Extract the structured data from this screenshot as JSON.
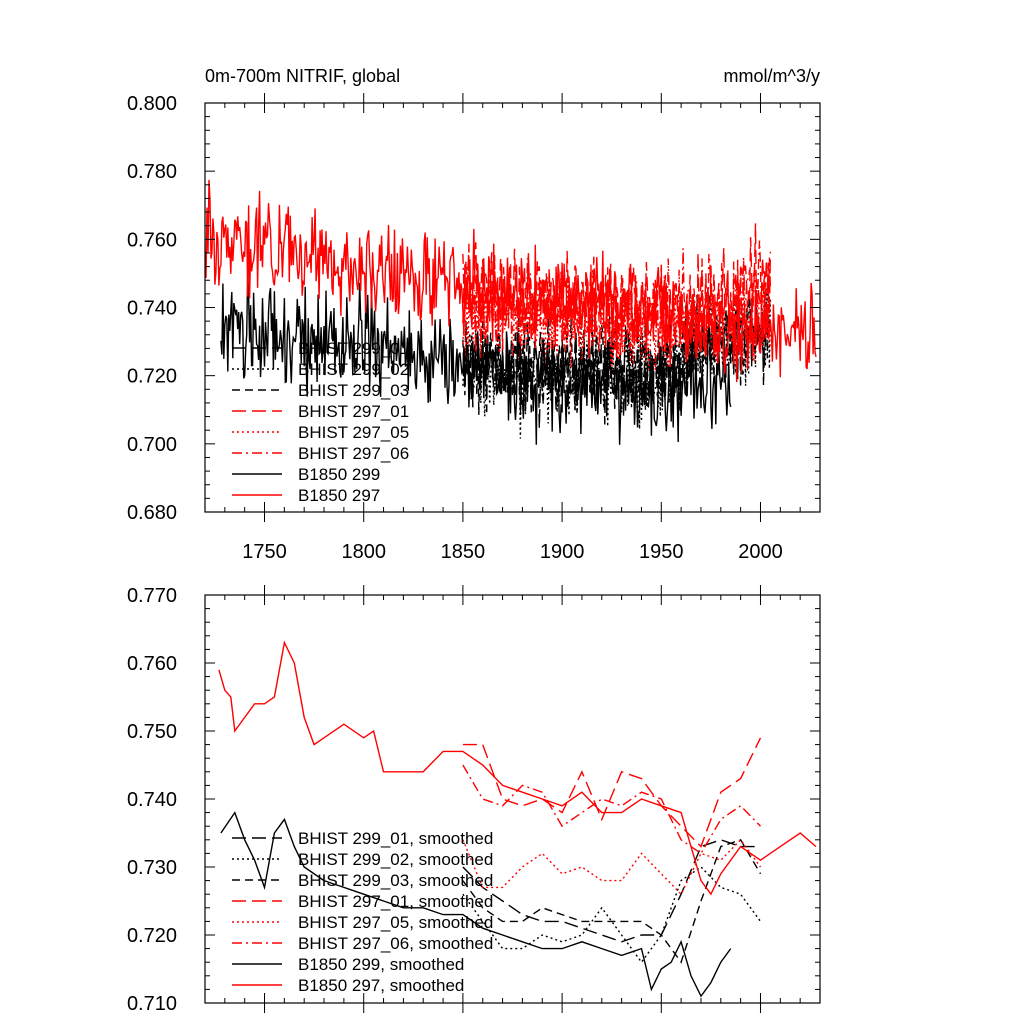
{
  "header": {
    "title": "0m-700m NITRIF, global",
    "units": "mmol/m^3/y"
  },
  "colors": {
    "hist_299": "#000000",
    "hist_297": "#ff0000",
    "background": "#ffffff"
  },
  "chart_data": [
    {
      "type": "line",
      "title": "0m-700m NITRIF, global",
      "units": "mmol/m^3/y",
      "xlim": [
        1720,
        2030
      ],
      "ylim": [
        0.68,
        0.8
      ],
      "xticks": [
        1750,
        1800,
        1850,
        1900,
        1950,
        2000
      ],
      "yticks": [
        0.68,
        0.7,
        0.72,
        0.74,
        0.76,
        0.78,
        0.8
      ],
      "ytick_labels": [
        "0.680",
        "0.700",
        "0.720",
        "0.740",
        "0.760",
        "0.780",
        "0.800"
      ],
      "xtick_labels": [
        "1750",
        "1800",
        "1850",
        "1900",
        "1950",
        "2000"
      ],
      "legend_position": "lower-left",
      "series": [
        {
          "name": "BHIST 299_01",
          "color": "#000000",
          "dash": "longdash",
          "x_range": [
            1850,
            2005
          ],
          "base": [
            [
              1850,
              0.724
            ],
            [
              1900,
              0.722
            ],
            [
              1950,
              0.721
            ],
            [
              1970,
              0.728
            ],
            [
              2005,
              0.733
            ]
          ],
          "amp": 0.012,
          "seed": 11
        },
        {
          "name": "BHIST 299_02",
          "color": "#000000",
          "dash": "dot",
          "x_range": [
            1850,
            2005
          ],
          "base": [
            [
              1850,
              0.722
            ],
            [
              1900,
              0.72
            ],
            [
              1950,
              0.719
            ],
            [
              1970,
              0.726
            ],
            [
              2005,
              0.731
            ]
          ],
          "amp": 0.013,
          "seed": 12
        },
        {
          "name": "BHIST 299_03",
          "color": "#000000",
          "dash": "dash",
          "x_range": [
            1850,
            2005
          ],
          "base": [
            [
              1850,
              0.724
            ],
            [
              1900,
              0.723
            ],
            [
              1950,
              0.722
            ],
            [
              1970,
              0.729
            ],
            [
              2005,
              0.734
            ]
          ],
          "amp": 0.012,
          "seed": 13
        },
        {
          "name": "BHIST 297_01",
          "color": "#ff0000",
          "dash": "longdash",
          "x_range": [
            1850,
            2005
          ],
          "base": [
            [
              1850,
              0.745
            ],
            [
              1900,
              0.742
            ],
            [
              1950,
              0.74
            ],
            [
              1980,
              0.742
            ],
            [
              2005,
              0.747
            ]
          ],
          "amp": 0.012,
          "seed": 21
        },
        {
          "name": "BHIST 297_05",
          "color": "#ff0000",
          "dash": "dot",
          "x_range": [
            1850,
            2005
          ],
          "base": [
            [
              1850,
              0.74
            ],
            [
              1900,
              0.733
            ],
            [
              1950,
              0.732
            ],
            [
              1980,
              0.735
            ],
            [
              2005,
              0.736
            ]
          ],
          "amp": 0.011,
          "seed": 22
        },
        {
          "name": "BHIST 297_06",
          "color": "#ff0000",
          "dash": "dashdot",
          "x_range": [
            1850,
            2005
          ],
          "base": [
            [
              1850,
              0.743
            ],
            [
              1900,
              0.74
            ],
            [
              1950,
              0.74
            ],
            [
              1980,
              0.742
            ],
            [
              2005,
              0.745
            ]
          ],
          "amp": 0.012,
          "seed": 23
        },
        {
          "name": "B1850 299",
          "color": "#000000",
          "dash": "solid",
          "x_range": [
            1728,
            1985
          ],
          "base": [
            [
              1728,
              0.734
            ],
            [
              1760,
              0.732
            ],
            [
              1800,
              0.728
            ],
            [
              1850,
              0.724
            ],
            [
              1900,
              0.718
            ],
            [
              1950,
              0.716
            ],
            [
              1985,
              0.718
            ]
          ],
          "amp": 0.013,
          "seed": 31
        },
        {
          "name": "B1850 297",
          "color": "#ff0000",
          "dash": "solid",
          "x_range": [
            1720,
            2028
          ],
          "base": [
            [
              1720,
              0.762
            ],
            [
              1760,
              0.758
            ],
            [
              1800,
              0.75
            ],
            [
              1850,
              0.748
            ],
            [
              1900,
              0.742
            ],
            [
              1950,
              0.74
            ],
            [
              1975,
              0.732
            ],
            [
              2028,
              0.733
            ]
          ],
          "amp": 0.012,
          "seed": 32
        }
      ]
    },
    {
      "type": "line",
      "xlim": [
        1720,
        2030
      ],
      "ylim": [
        0.71,
        0.77
      ],
      "xticks": [
        1750,
        1800,
        1850,
        1900,
        1950,
        2000
      ],
      "yticks": [
        0.71,
        0.72,
        0.73,
        0.74,
        0.75,
        0.76,
        0.77
      ],
      "ytick_labels": [
        "0.710",
        "0.720",
        "0.730",
        "0.740",
        "0.750",
        "0.760",
        "0.770"
      ],
      "legend_position": "lower-left",
      "series": [
        {
          "name": "BHIST 299_01, smoothed",
          "color": "#000000",
          "dash": "longdash",
          "x": [
            1850,
            1860,
            1870,
            1880,
            1890,
            1900,
            1910,
            1920,
            1930,
            1940,
            1950,
            1960,
            1970,
            1980,
            1990,
            2000
          ],
          "y": [
            0.73,
            0.727,
            0.725,
            0.723,
            0.722,
            0.722,
            0.721,
            0.72,
            0.719,
            0.72,
            0.72,
            0.726,
            0.733,
            0.734,
            0.733,
            0.733
          ]
        },
        {
          "name": "BHIST 299_02, smoothed",
          "color": "#000000",
          "dash": "dot",
          "x": [
            1850,
            1860,
            1870,
            1880,
            1890,
            1900,
            1910,
            1920,
            1930,
            1940,
            1950,
            1960,
            1970,
            1980,
            1990,
            2000
          ],
          "y": [
            0.726,
            0.722,
            0.718,
            0.718,
            0.72,
            0.719,
            0.72,
            0.724,
            0.72,
            0.716,
            0.72,
            0.728,
            0.73,
            0.727,
            0.726,
            0.722
          ]
        },
        {
          "name": "BHIST 299_03, smoothed",
          "color": "#000000",
          "dash": "dash",
          "x": [
            1850,
            1860,
            1870,
            1880,
            1890,
            1900,
            1910,
            1920,
            1930,
            1940,
            1950,
            1960,
            1970,
            1980,
            1990,
            2000
          ],
          "y": [
            0.728,
            0.724,
            0.722,
            0.722,
            0.724,
            0.723,
            0.722,
            0.722,
            0.722,
            0.722,
            0.72,
            0.716,
            0.725,
            0.733,
            0.734,
            0.729
          ]
        },
        {
          "name": "BHIST 297_01, smoothed",
          "color": "#ff0000",
          "dash": "longdash",
          "x": [
            1850,
            1860,
            1870,
            1880,
            1890,
            1900,
            1910,
            1920,
            1930,
            1940,
            1950,
            1960,
            1970,
            1980,
            1990,
            2000
          ],
          "y": [
            0.748,
            0.748,
            0.74,
            0.739,
            0.74,
            0.738,
            0.744,
            0.737,
            0.744,
            0.743,
            0.739,
            0.736,
            0.733,
            0.741,
            0.743,
            0.749
          ]
        },
        {
          "name": "BHIST 297_05, smoothed",
          "color": "#ff0000",
          "dash": "dot",
          "x": [
            1850,
            1860,
            1870,
            1880,
            1890,
            1900,
            1910,
            1920,
            1930,
            1940,
            1950,
            1960,
            1970,
            1980,
            1990,
            2000
          ],
          "y": [
            0.734,
            0.727,
            0.727,
            0.73,
            0.732,
            0.729,
            0.73,
            0.728,
            0.728,
            0.732,
            0.729,
            0.726,
            0.732,
            0.731,
            0.734,
            0.73
          ]
        },
        {
          "name": "BHIST 297_06, smoothed",
          "color": "#ff0000",
          "dash": "dashdot",
          "x": [
            1850,
            1860,
            1870,
            1880,
            1890,
            1900,
            1910,
            1920,
            1930,
            1940,
            1950,
            1960,
            1970,
            1980,
            1990,
            2000
          ],
          "y": [
            0.745,
            0.74,
            0.739,
            0.742,
            0.741,
            0.736,
            0.738,
            0.74,
            0.739,
            0.741,
            0.74,
            0.734,
            0.732,
            0.737,
            0.739,
            0.736
          ]
        },
        {
          "name": "B1850 299, smoothed",
          "color": "#000000",
          "dash": "solid",
          "x": [
            1728,
            1735,
            1740,
            1745,
            1750,
            1755,
            1760,
            1765,
            1770,
            1780,
            1790,
            1800,
            1810,
            1820,
            1830,
            1840,
            1850,
            1860,
            1870,
            1880,
            1890,
            1900,
            1910,
            1920,
            1930,
            1940,
            1945,
            1950,
            1955,
            1960,
            1965,
            1970,
            1975,
            1980,
            1985
          ],
          "y": [
            0.735,
            0.738,
            0.734,
            0.731,
            0.727,
            0.735,
            0.737,
            0.733,
            0.73,
            0.728,
            0.727,
            0.726,
            0.725,
            0.724,
            0.724,
            0.723,
            0.723,
            0.721,
            0.72,
            0.719,
            0.718,
            0.718,
            0.719,
            0.718,
            0.717,
            0.718,
            0.712,
            0.715,
            0.716,
            0.719,
            0.714,
            0.711,
            0.713,
            0.716,
            0.718
          ]
        },
        {
          "name": "B1850 297, smoothed",
          "color": "#ff0000",
          "dash": "solid",
          "x": [
            1727,
            1730,
            1733,
            1735,
            1740,
            1745,
            1750,
            1755,
            1760,
            1765,
            1770,
            1775,
            1780,
            1790,
            1800,
            1805,
            1810,
            1820,
            1830,
            1840,
            1850,
            1860,
            1870,
            1880,
            1890,
            1900,
            1910,
            1920,
            1930,
            1940,
            1950,
            1960,
            1965,
            1970,
            1975,
            1980,
            1990,
            2000,
            2010,
            2020,
            2028
          ],
          "y": [
            0.759,
            0.756,
            0.755,
            0.75,
            0.752,
            0.754,
            0.754,
            0.755,
            0.763,
            0.76,
            0.752,
            0.748,
            0.749,
            0.751,
            0.749,
            0.75,
            0.744,
            0.744,
            0.744,
            0.747,
            0.747,
            0.745,
            0.742,
            0.741,
            0.74,
            0.739,
            0.741,
            0.738,
            0.738,
            0.74,
            0.739,
            0.738,
            0.733,
            0.728,
            0.726,
            0.729,
            0.733,
            0.731,
            0.733,
            0.735,
            0.733
          ]
        }
      ]
    }
  ]
}
